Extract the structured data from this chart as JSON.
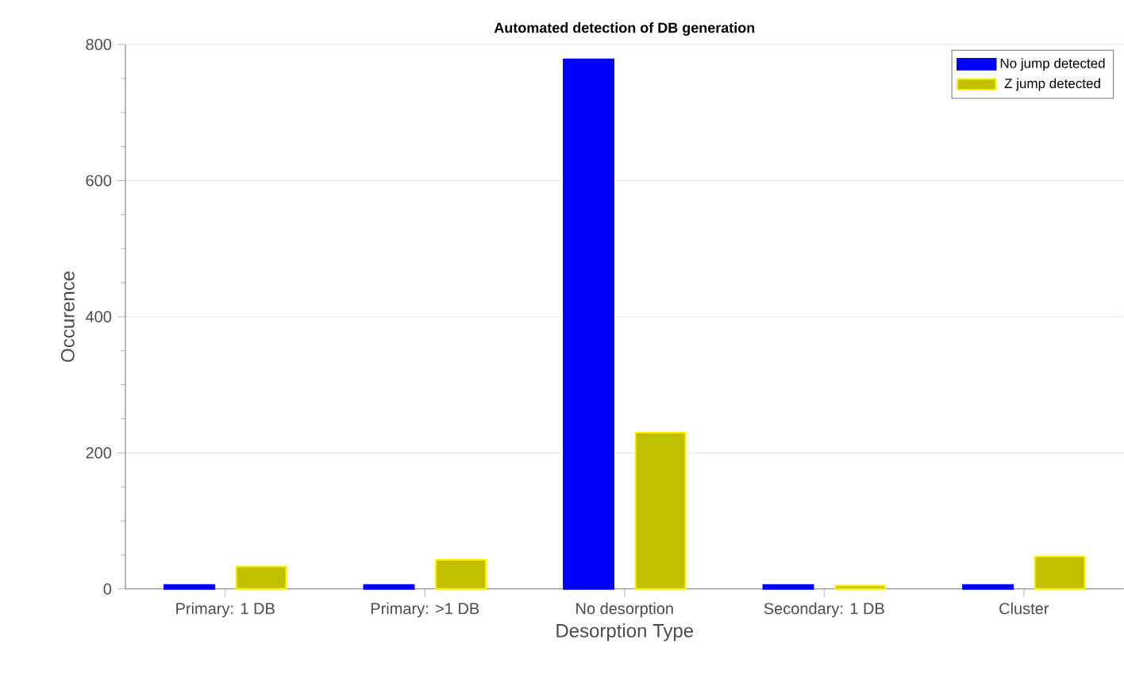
{
  "chart_data": {
    "type": "bar",
    "title": "Automated detection of DB generation",
    "xlabel": "Desorption Type",
    "ylabel": "Occurence",
    "categories": [
      "Primary: 1 DB",
      "Primary: >1 DB",
      "No desorption",
      "Secondary: 1 DB",
      "Cluster"
    ],
    "series": [
      {
        "name": "No jump detected",
        "color": "#0000ff",
        "values": [
          6,
          6,
          778,
          6,
          6
        ]
      },
      {
        "name": "Z jump detected",
        "color": "#c0c000",
        "values": [
          33,
          43,
          230,
          5,
          48
        ]
      }
    ],
    "ylim": [
      0,
      800
    ],
    "yticks": [
      0,
      200,
      400,
      600,
      800
    ],
    "grid": "y",
    "legend": "top right"
  }
}
